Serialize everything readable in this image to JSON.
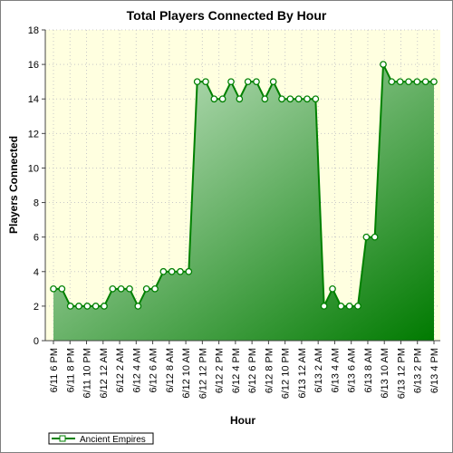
{
  "chart_data": {
    "type": "area",
    "title": "Total Players Connected By Hour",
    "xlabel": "Hour",
    "ylabel": "Players Connected",
    "ylim": [
      0,
      18
    ],
    "yticks": [
      0,
      2,
      4,
      6,
      8,
      10,
      12,
      14,
      16,
      18
    ],
    "grid": true,
    "legend_position": "bottom-left",
    "x_tick_labels": [
      "6/11 6 PM",
      "6/11 8 PM",
      "6/11 10 PM",
      "6/12 12 AM",
      "6/12 2 AM",
      "6/12 4 AM",
      "6/12 6 AM",
      "6/12 8 AM",
      "6/12 10 AM",
      "6/12 12 PM",
      "6/12 2 PM",
      "6/12 4 PM",
      "6/12 6 PM",
      "6/12 8 PM",
      "6/12 10 PM",
      "6/13 12 AM",
      "6/13 2 AM",
      "6/13 4 AM",
      "6/13 6 AM",
      "6/13 8 AM",
      "6/13 10 AM",
      "6/13 12 PM",
      "6/13 2 PM",
      "6/13 4 PM"
    ],
    "series": [
      {
        "name": "Ancient Empires",
        "color": "#008000",
        "values": [
          3,
          3,
          2,
          2,
          2,
          2,
          2,
          3,
          3,
          3,
          2,
          3,
          3,
          4,
          4,
          4,
          4,
          15,
          15,
          14,
          14,
          15,
          14,
          15,
          15,
          14,
          15,
          14,
          14,
          14,
          14,
          14,
          2,
          3,
          2,
          2,
          2,
          6,
          6,
          16,
          15,
          15,
          15,
          15,
          15,
          15
        ]
      }
    ]
  },
  "colors": {
    "plot_background": "#ffffe0",
    "series_line": "#008000",
    "area_light": "#d4ecd4",
    "area_dark": "#007a00",
    "marker_fill": "#ffffff"
  }
}
